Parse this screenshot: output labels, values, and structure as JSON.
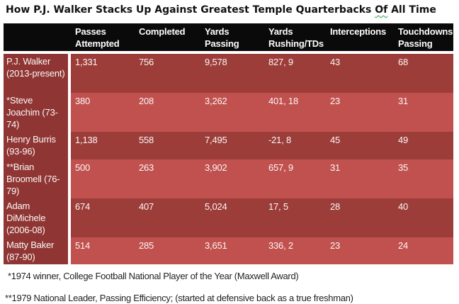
{
  "title": {
    "pre": "How P.J. Walker Stacks Up Against Greatest Temple Quarterbacks ",
    "flagged_word": "Of",
    "post": " All Time"
  },
  "table": {
    "columns": [
      "",
      "Passes Attempted",
      "Completed",
      "Yards Passing",
      "Yards Rushing/TDs",
      "Interceptions",
      "Touchdowns Passing"
    ],
    "rows": [
      {
        "name": "P.J. Walker (2013-present)",
        "values": [
          "1,331",
          "756",
          "9,578",
          "827, 9",
          "43",
          "68"
        ]
      },
      {
        "name": "*Steve Joachim (73-74)",
        "values": [
          "380",
          "208",
          "3,262",
          "401, 18",
          "23",
          "31"
        ]
      },
      {
        "name": "Henry Burris (93-96)",
        "values": [
          "1,138",
          "558",
          "7,495",
          "-21, 8",
          "45",
          "49"
        ]
      },
      {
        "name": "**Brian Broomell (76-79)",
        "values": [
          "500",
          "263",
          "3,902",
          "657, 9",
          "31",
          "35"
        ]
      },
      {
        "name": "Adam DiMichele (2006-08)",
        "values": [
          "674",
          "407",
          "5,024",
          "17, 5",
          "28",
          "40"
        ]
      },
      {
        "name": "Matty Baker (87-90)",
        "values": [
          "514",
          "285",
          "3,651",
          "336, 2",
          "23",
          "24"
        ]
      }
    ]
  },
  "footnotes": [
    "*1974 winner, College Football National Player of the Year (Maxwell Award)",
    "**1979 National Leader, Passing Efficiency; (started at defensive back as a true freshman)"
  ],
  "colors": {
    "header_bg": "#0a0a0a",
    "name_column": "#8f3634",
    "dark_band": "#9c3d3a",
    "light_band": "#c0514e",
    "cell_text": "#fbf7f6",
    "squiggle_green": "#22a04a"
  }
}
